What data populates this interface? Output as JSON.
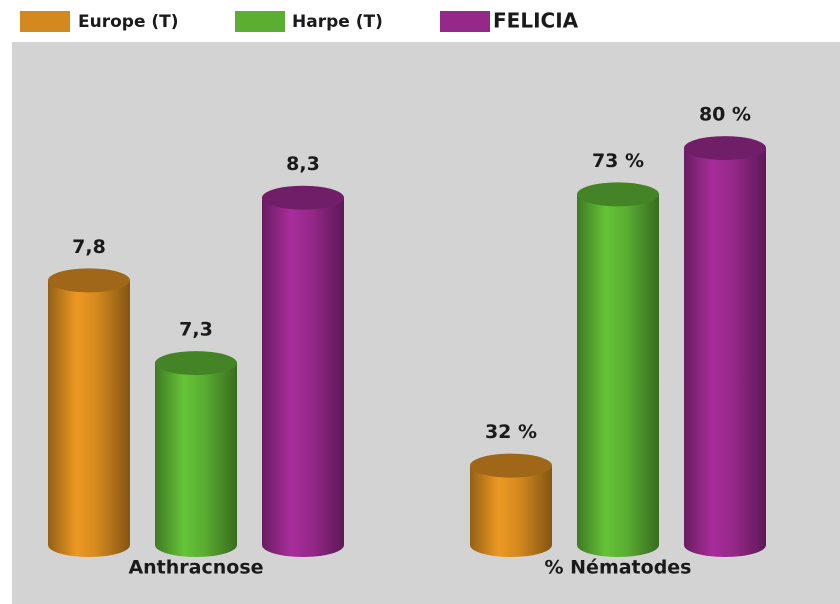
{
  "chart_data": [
    {
      "type": "bar",
      "categories": [
        "Anthracnose"
      ],
      "series": [
        {
          "name": "Europe (T)",
          "color": "#d4891e",
          "values": [
            7.8
          ],
          "value_labels": [
            "7,8"
          ]
        },
        {
          "name": "Harpe (T)",
          "color": "#5aae32",
          "values": [
            7.3
          ],
          "value_labels": [
            "7,3"
          ]
        },
        {
          "name": "FELICIA",
          "color": "#96288a",
          "values": [
            8.3
          ],
          "value_labels": [
            "8,3"
          ]
        }
      ],
      "ylim": [
        6.2,
        8.8
      ]
    },
    {
      "type": "bar",
      "categories": [
        "% Nématodes"
      ],
      "series": [
        {
          "color": "#d4891e",
          "values": [
            32
          ],
          "value_labels": [
            "32 %"
          ]
        },
        {
          "color": "#5aae32",
          "values": [
            73
          ],
          "value_labels": [
            "73 %"
          ]
        },
        {
          "color": "#96288a",
          "values": [
            80
          ],
          "value_labels": [
            "80 %"
          ]
        }
      ],
      "ylim": [
        20,
        85
      ]
    }
  ]
}
